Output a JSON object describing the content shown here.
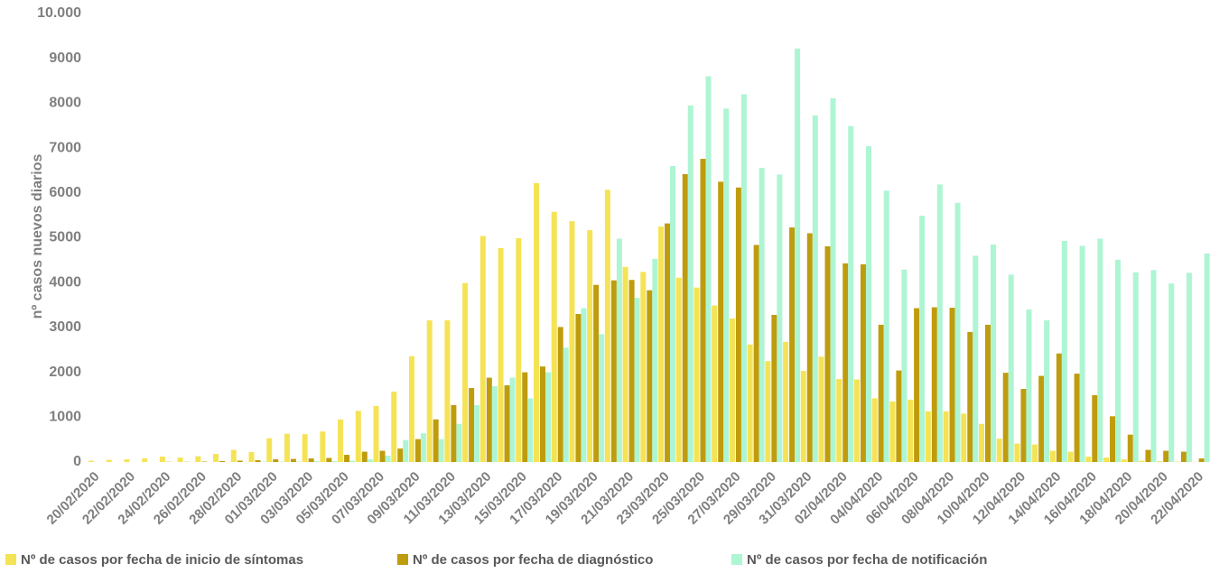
{
  "chart_data": {
    "type": "bar",
    "y_label": "nº casos nuevos diarios",
    "categories": [
      "20/02/2020",
      null,
      "22/02/2020",
      null,
      "24/02/2020",
      null,
      "26/02/2020",
      null,
      "28/02/2020",
      null,
      "01/03/2020",
      null,
      "03/03/2020",
      null,
      "05/03/2020",
      null,
      "07/03/2020",
      null,
      "09/03/2020",
      null,
      "11/03/2020",
      null,
      "13/03/2020",
      null,
      "15/03/2020",
      null,
      "17/03/2020",
      null,
      "19/03/2020",
      null,
      "21/03/2020",
      null,
      "23/03/2020",
      null,
      "25/03/2020",
      null,
      "27/03/2020",
      null,
      "29/03/2020",
      null,
      "31/03/2020",
      null,
      "02/04/2020",
      null,
      "04/04/2020",
      null,
      "06/04/2020",
      null,
      "08/04/2020",
      null,
      "10/04/2020",
      null,
      "12/04/2020",
      null,
      "14/04/2020",
      null,
      "16/04/2020",
      null,
      "18/04/2020",
      null,
      "20/04/2020",
      null,
      "22/04/2020"
    ],
    "series": [
      {
        "name": "Nº de casos por fecha de inicio de síntomas",
        "color": "#f5e356",
        "values": [
          30,
          50,
          60,
          80,
          120,
          100,
          130,
          180,
          270,
          220,
          530,
          630,
          620,
          680,
          950,
          1140,
          1250,
          1570,
          2360,
          3160,
          3160,
          3990,
          5040,
          4770,
          4990,
          6220,
          5580,
          5370,
          5170,
          6070,
          4350,
          4240,
          5250,
          4110,
          3890,
          3490,
          3200,
          2620,
          2250,
          2680,
          2030,
          2350,
          1850,
          1840,
          1420,
          1350,
          1390,
          1130,
          1130,
          1080,
          850,
          520,
          410,
          390,
          250,
          230,
          120,
          100,
          60,
          30,
          20,
          10,
          5
        ]
      },
      {
        "name": "Nº de casos por fecha de diagnóstico",
        "color": "#bf9c0e",
        "values": [
          0,
          0,
          0,
          0,
          5,
          5,
          10,
          20,
          30,
          40,
          60,
          70,
          80,
          90,
          160,
          230,
          250,
          300,
          510,
          950,
          1270,
          1650,
          1880,
          1710,
          2000,
          2130,
          3010,
          3300,
          3950,
          4050,
          4060,
          3830,
          5320,
          6420,
          6760,
          6250,
          6120,
          4840,
          3280,
          5230,
          5100,
          4810,
          4430,
          4410,
          3060,
          2040,
          3430,
          3450,
          3440,
          2900,
          3060,
          1990,
          1630,
          1920,
          2420,
          1970,
          1490,
          1020,
          610,
          270,
          250,
          230,
          80
        ]
      },
      {
        "name": "Nº de casos por fecha de notificación",
        "color": "#aef5d3",
        "values": [
          0,
          0,
          0,
          0,
          0,
          0,
          0,
          0,
          5,
          10,
          10,
          10,
          20,
          20,
          30,
          60,
          140,
          490,
          640,
          510,
          850,
          1270,
          1690,
          1880,
          1420,
          2000,
          2550,
          3430,
          2850,
          4980,
          3660,
          4530,
          6600,
          7950,
          8600,
          7880,
          8200,
          6560,
          6410,
          9220,
          7730,
          8110,
          7490,
          7040,
          6050,
          4290,
          5490,
          6190,
          5780,
          4600,
          4850,
          4180,
          3400,
          3160,
          4930,
          4820,
          4980,
          4510,
          4230,
          4280,
          3980,
          4220,
          4650
        ]
      }
    ],
    "ylim": [
      0,
      10000
    ],
    "yticks": [
      0,
      1000,
      2000,
      3000,
      4000,
      5000,
      6000,
      7000,
      8000,
      9000,
      {
        "value": 10000,
        "label": "10.000"
      }
    ],
    "grid": false
  }
}
